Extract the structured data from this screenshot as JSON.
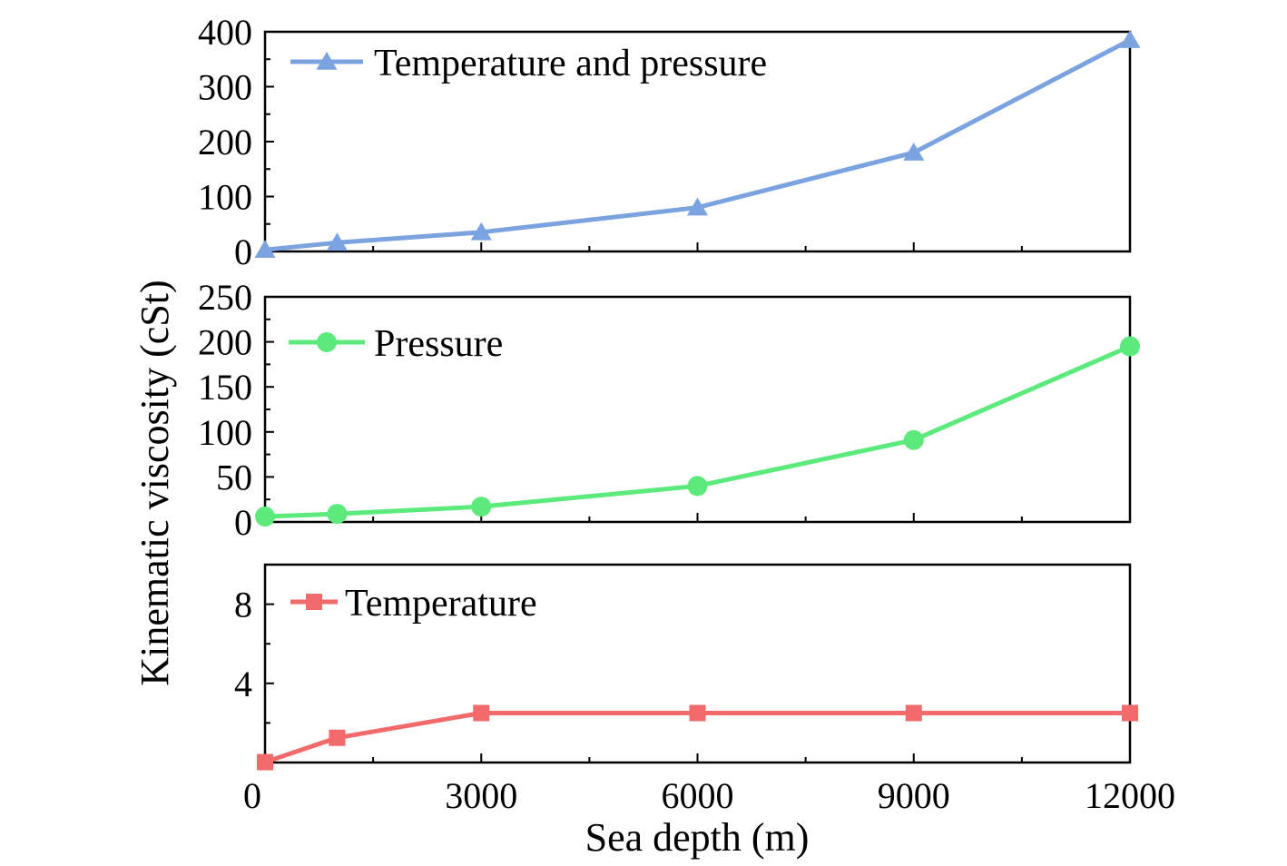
{
  "chart_data": {
    "type": "line",
    "xlabel": "Sea depth (m)",
    "ylabel": "Kinematic viscosity (cSt)",
    "x_ticks": [
      0,
      3000,
      6000,
      9000,
      12000
    ],
    "x_tick_labels": [
      "0",
      "3000",
      "6000",
      "9000",
      "12000"
    ],
    "xlim": [
      0,
      12000
    ],
    "grid": false,
    "panels": [
      {
        "ylim": [
          0,
          400
        ],
        "y_ticks": [
          0,
          100,
          200,
          300,
          400
        ],
        "y_tick_labels": [
          "0",
          "100",
          "200",
          "300",
          "400"
        ],
        "legend_position": "top-left",
        "series": [
          {
            "name": "Temperature and pressure",
            "color": "#7aa3e0",
            "marker": "triangle",
            "x": [
              0,
              1000,
              3000,
              6000,
              9000,
              12000
            ],
            "y": [
              3,
              16,
              35,
              80,
              180,
              385
            ]
          }
        ]
      },
      {
        "ylim": [
          0,
          250
        ],
        "y_ticks": [
          0,
          50,
          100,
          150,
          200,
          250
        ],
        "y_tick_labels": [
          "0",
          "50",
          "100",
          "150",
          "200",
          "250"
        ],
        "legend_position": "top-left",
        "series": [
          {
            "name": "Pressure",
            "color": "#5cea7c",
            "marker": "circle",
            "x": [
              0,
              1000,
              3000,
              6000,
              9000,
              12000
            ],
            "y": [
              6,
              9,
              17,
              40,
              91,
              195
            ]
          }
        ]
      },
      {
        "ylim": [
          0,
          10
        ],
        "y_ticks": [
          4,
          8
        ],
        "y_tick_labels": [
          "4",
          "8"
        ],
        "legend_position": "top-left",
        "series": [
          {
            "name": "Temperature",
            "color": "#f26a6a",
            "marker": "square",
            "x": [
              0,
              1000,
              3000,
              6000,
              9000,
              12000
            ],
            "y": [
              0.02,
              1.25,
              2.5,
              2.5,
              2.5,
              2.5
            ]
          }
        ]
      }
    ]
  }
}
